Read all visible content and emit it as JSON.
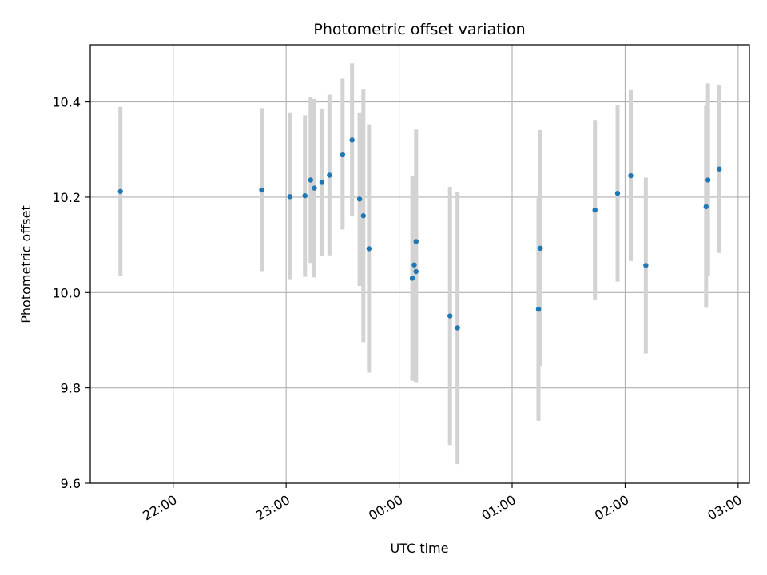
{
  "chart_data": {
    "type": "scatter",
    "title": "Photometric offset variation",
    "xlabel": "UTC time",
    "ylabel": "Photometric offset",
    "x_axis_type": "time",
    "xlim": [
      "21:16",
      "03:06"
    ],
    "ylim": [
      9.6,
      10.52
    ],
    "x_ticks": [
      "22:00",
      "23:00",
      "00:00",
      "01:00",
      "02:00",
      "03:00"
    ],
    "y_ticks": [
      "9.6",
      "9.8",
      "10.0",
      "10.2",
      "10.4"
    ],
    "grid": true,
    "point_color": "#1f77b4",
    "errorbar_color": "#d3d3d3",
    "points": [
      {
        "x": "21:32",
        "y": 10.212,
        "low": 10.035,
        "high": 10.39
      },
      {
        "x": "22:47",
        "y": 10.215,
        "low": 10.045,
        "high": 10.387
      },
      {
        "x": "23:02",
        "y": 10.201,
        "low": 10.028,
        "high": 10.378
      },
      {
        "x": "23:10",
        "y": 10.203,
        "low": 10.033,
        "high": 10.372
      },
      {
        "x": "23:13",
        "y": 10.236,
        "low": 10.062,
        "high": 10.41
      },
      {
        "x": "23:15",
        "y": 10.219,
        "low": 10.032,
        "high": 10.406
      },
      {
        "x": "23:19",
        "y": 10.231,
        "low": 10.077,
        "high": 10.386
      },
      {
        "x": "23:23",
        "y": 10.246,
        "low": 10.078,
        "high": 10.415
      },
      {
        "x": "23:30",
        "y": 10.29,
        "low": 10.132,
        "high": 10.449
      },
      {
        "x": "23:35",
        "y": 10.32,
        "low": 10.161,
        "high": 10.481
      },
      {
        "x": "23:39",
        "y": 10.196,
        "low": 10.014,
        "high": 10.378
      },
      {
        "x": "23:41",
        "y": 10.161,
        "low": 9.896,
        "high": 10.426
      },
      {
        "x": "23:44",
        "y": 10.092,
        "low": 9.832,
        "high": 10.353
      },
      {
        "x": "00:07",
        "y": 10.03,
        "low": 9.815,
        "high": 10.245
      },
      {
        "x": "00:08",
        "y": 10.058,
        "low": 9.875,
        "high": 10.24
      },
      {
        "x": "00:09",
        "y": 10.044,
        "low": 9.88,
        "high": 10.208
      },
      {
        "x": "00:09",
        "y": 10.107,
        "low": 9.812,
        "high": 10.342
      },
      {
        "x": "00:27",
        "y": 9.951,
        "low": 9.68,
        "high": 10.222
      },
      {
        "x": "00:31",
        "y": 9.926,
        "low": 9.64,
        "high": 10.211
      },
      {
        "x": "01:14",
        "y": 9.965,
        "low": 9.731,
        "high": 10.198
      },
      {
        "x": "01:15",
        "y": 10.093,
        "low": 9.846,
        "high": 10.341
      },
      {
        "x": "01:44",
        "y": 10.173,
        "low": 9.984,
        "high": 10.362
      },
      {
        "x": "01:56",
        "y": 10.208,
        "low": 10.023,
        "high": 10.393
      },
      {
        "x": "02:03",
        "y": 10.245,
        "low": 10.066,
        "high": 10.425
      },
      {
        "x": "02:11",
        "y": 10.057,
        "low": 9.872,
        "high": 10.241
      },
      {
        "x": "02:43",
        "y": 10.18,
        "low": 9.968,
        "high": 10.392
      },
      {
        "x": "02:44",
        "y": 10.236,
        "low": 10.034,
        "high": 10.439
      },
      {
        "x": "02:50",
        "y": 10.259,
        "low": 10.083,
        "high": 10.435
      }
    ]
  }
}
